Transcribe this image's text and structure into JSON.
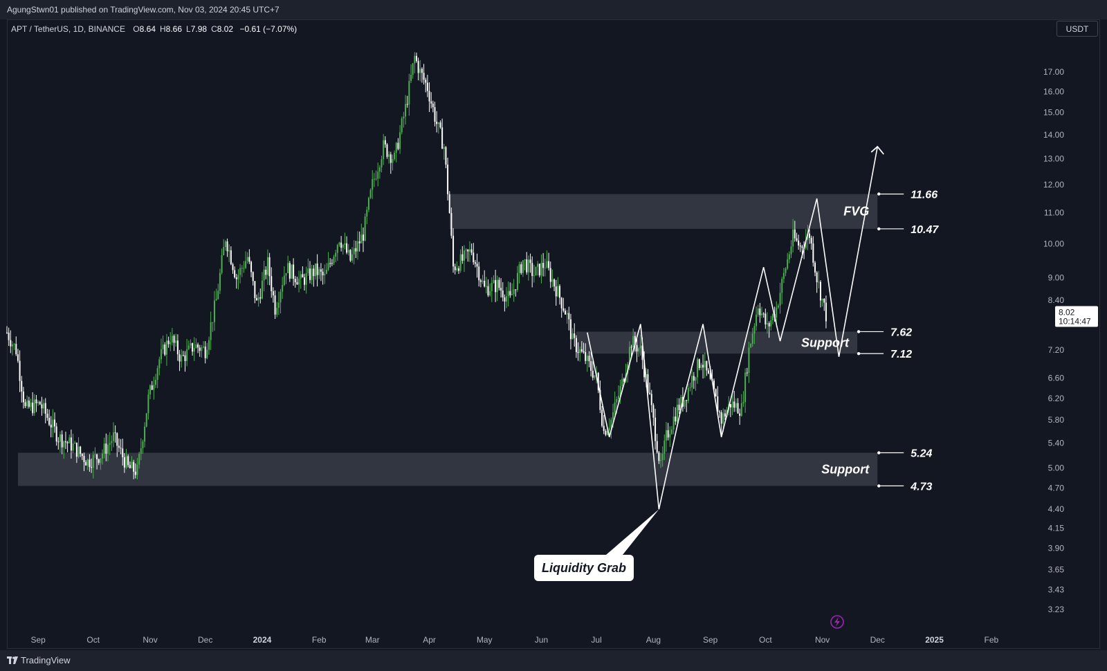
{
  "header": {
    "publisher_line": "AgungStwn01 published on TradingView.com, Nov 03, 2024 20:45 UTC+7"
  },
  "legend": {
    "symbol": "APT / TetherUS, 1D, BINANCE",
    "ohlc": [
      {
        "k": "O",
        "v": "8.64"
      },
      {
        "k": "H",
        "v": "8.66"
      },
      {
        "k": "L",
        "v": "7.98"
      },
      {
        "k": "C",
        "v": "8.02"
      }
    ],
    "change": "−0.61 (−7.07%)"
  },
  "price_scale": {
    "currency": "USDT",
    "last_price": "8.02",
    "countdown": "10:14:47"
  },
  "footer": {
    "brand": "TradingView"
  },
  "colors": {
    "up": "#4caf50",
    "down": "#ffffff",
    "background": "#131722",
    "zone": "#363a45",
    "accent_icon": "#9c27b0"
  },
  "icons": [
    "lightning-icon",
    "tradingview-logo-icon"
  ],
  "chart_data": {
    "type": "candlestick",
    "scale": "log",
    "interval": "1D",
    "ylim": [
      3.1,
      19.5
    ],
    "x_range": [
      "2023-08-15",
      "2025-02-15"
    ],
    "y_ticks": [
      "17.00",
      "16.00",
      "15.00",
      "14.00",
      "13.00",
      "12.00",
      "11.00",
      "10.00",
      "9.00",
      "8.40",
      "7.20",
      "6.60",
      "6.20",
      "5.80",
      "5.40",
      "5.00",
      "4.70",
      "4.40",
      "4.15",
      "3.90",
      "3.65",
      "3.43",
      "3.23"
    ],
    "x_ticks": [
      {
        "label": "Sep",
        "date": "2023-09-01"
      },
      {
        "label": "Oct",
        "date": "2023-10-01"
      },
      {
        "label": "Nov",
        "date": "2023-11-01"
      },
      {
        "label": "Dec",
        "date": "2023-12-01"
      },
      {
        "label": "2024",
        "date": "2024-01-01",
        "bold": true
      },
      {
        "label": "Feb",
        "date": "2024-02-01"
      },
      {
        "label": "Mar",
        "date": "2024-03-01"
      },
      {
        "label": "Apr",
        "date": "2024-04-01"
      },
      {
        "label": "May",
        "date": "2024-05-01"
      },
      {
        "label": "Jun",
        "date": "2024-06-01"
      },
      {
        "label": "Jul",
        "date": "2024-07-01"
      },
      {
        "label": "Aug",
        "date": "2024-08-01"
      },
      {
        "label": "Sep",
        "date": "2024-09-01"
      },
      {
        "label": "Oct",
        "date": "2024-10-01"
      },
      {
        "label": "Nov",
        "date": "2024-11-01"
      },
      {
        "label": "Dec",
        "date": "2024-12-01"
      },
      {
        "label": "2025",
        "date": "2025-01-01",
        "bold": true
      },
      {
        "label": "Feb",
        "date": "2025-02-01"
      }
    ],
    "price_path": [
      [
        "2023-08-15",
        7.6
      ],
      [
        "2023-08-20",
        7.2
      ],
      [
        "2023-08-25",
        6.0
      ],
      [
        "2023-09-02",
        6.1
      ],
      [
        "2023-09-12",
        5.5
      ],
      [
        "2023-09-20",
        5.35
      ],
      [
        "2023-09-28",
        5.1
      ],
      [
        "2023-10-05",
        5.2
      ],
      [
        "2023-10-12",
        5.5
      ],
      [
        "2023-10-20",
        5.0
      ],
      [
        "2023-10-25",
        4.95
      ],
      [
        "2023-10-31",
        6.2
      ],
      [
        "2023-11-06",
        7.0
      ],
      [
        "2023-11-12",
        7.5
      ],
      [
        "2023-11-18",
        7.0
      ],
      [
        "2023-11-25",
        7.3
      ],
      [
        "2023-12-01",
        7.2
      ],
      [
        "2023-12-07",
        8.4
      ],
      [
        "2023-12-12",
        10.2
      ],
      [
        "2023-12-18",
        9.0
      ],
      [
        "2023-12-24",
        9.6
      ],
      [
        "2023-12-29",
        8.3
      ],
      [
        "2024-01-04",
        9.4
      ],
      [
        "2024-01-08",
        8.2
      ],
      [
        "2024-01-14",
        9.3
      ],
      [
        "2024-01-22",
        8.9
      ],
      [
        "2024-01-30",
        9.2
      ],
      [
        "2024-02-04",
        9.0
      ],
      [
        "2024-02-12",
        10.2
      ],
      [
        "2024-02-18",
        9.5
      ],
      [
        "2024-02-25",
        10.3
      ],
      [
        "2024-03-01",
        12.0
      ],
      [
        "2024-03-07",
        13.5
      ],
      [
        "2024-03-13",
        13.0
      ],
      [
        "2024-03-19",
        15.2
      ],
      [
        "2024-03-24",
        17.8
      ],
      [
        "2024-03-27",
        17.0
      ],
      [
        "2024-03-31",
        16.2
      ],
      [
        "2024-04-05",
        14.5
      ],
      [
        "2024-04-09",
        13.5
      ],
      [
        "2024-04-12",
        11.0
      ],
      [
        "2024-04-14",
        9.3
      ],
      [
        "2024-04-19",
        9.5
      ],
      [
        "2024-04-24",
        9.8
      ],
      [
        "2024-05-01",
        8.7
      ],
      [
        "2024-05-08",
        8.8
      ],
      [
        "2024-05-15",
        8.4
      ],
      [
        "2024-05-22",
        9.5
      ],
      [
        "2024-05-28",
        9.1
      ],
      [
        "2024-06-03",
        9.4
      ],
      [
        "2024-06-10",
        8.6
      ],
      [
        "2024-06-15",
        8.0
      ],
      [
        "2024-06-18",
        7.4
      ],
      [
        "2024-06-25",
        7.0
      ],
      [
        "2024-07-01",
        6.6
      ],
      [
        "2024-07-05",
        5.6
      ],
      [
        "2024-07-09",
        5.8
      ],
      [
        "2024-07-15",
        6.5
      ],
      [
        "2024-07-20",
        7.4
      ],
      [
        "2024-07-25",
        7.2
      ],
      [
        "2024-07-30",
        6.2
      ],
      [
        "2024-08-05",
        5.0
      ],
      [
        "2024-08-08",
        5.5
      ],
      [
        "2024-08-14",
        6.0
      ],
      [
        "2024-08-18",
        6.2
      ],
      [
        "2024-08-22",
        6.6
      ],
      [
        "2024-08-27",
        7.0
      ],
      [
        "2024-09-02",
        6.4
      ],
      [
        "2024-09-07",
        5.8
      ],
      [
        "2024-09-12",
        6.1
      ],
      [
        "2024-09-18",
        6.0
      ],
      [
        "2024-09-22",
        7.2
      ],
      [
        "2024-09-27",
        8.3
      ],
      [
        "2024-10-02",
        7.7
      ],
      [
        "2024-10-07",
        8.2
      ],
      [
        "2024-10-12",
        9.3
      ],
      [
        "2024-10-16",
        10.2
      ],
      [
        "2024-10-20",
        9.9
      ],
      [
        "2024-10-25",
        10.3
      ],
      [
        "2024-10-29",
        9.0
      ],
      [
        "2024-11-03",
        8.02
      ]
    ],
    "zones": [
      {
        "label": "FVG",
        "from": "2024-04-12",
        "to": "2024-12-01",
        "low": 10.47,
        "high": 11.66
      },
      {
        "label": "Support",
        "from": "2024-06-20",
        "to": "2024-11-20",
        "low": 7.12,
        "high": 7.62
      },
      {
        "label": "Support",
        "from": "2023-08-21",
        "to": "2024-12-01",
        "low": 4.73,
        "high": 5.24
      }
    ],
    "levels": [
      "11.66",
      "10.47",
      "7.62",
      "7.12",
      "5.24",
      "4.73"
    ],
    "zigzag_path": [
      [
        "2024-06-26",
        7.6
      ],
      [
        "2024-07-08",
        5.5
      ],
      [
        "2024-07-25",
        7.8
      ],
      [
        "2024-08-04",
        4.4
      ],
      [
        "2024-08-16",
        6.0
      ],
      [
        "2024-08-28",
        7.8
      ],
      [
        "2024-09-07",
        5.5
      ],
      [
        "2024-09-30",
        9.3
      ],
      [
        "2024-10-09",
        7.4
      ],
      [
        "2024-10-29",
        11.5
      ],
      [
        "2024-11-10",
        7.05
      ],
      [
        "2024-11-31",
        13.5
      ]
    ],
    "annotations": [
      {
        "text": "Liquidity Grab",
        "at_date": "2024-08-04",
        "at_price": 4.4
      }
    ]
  }
}
